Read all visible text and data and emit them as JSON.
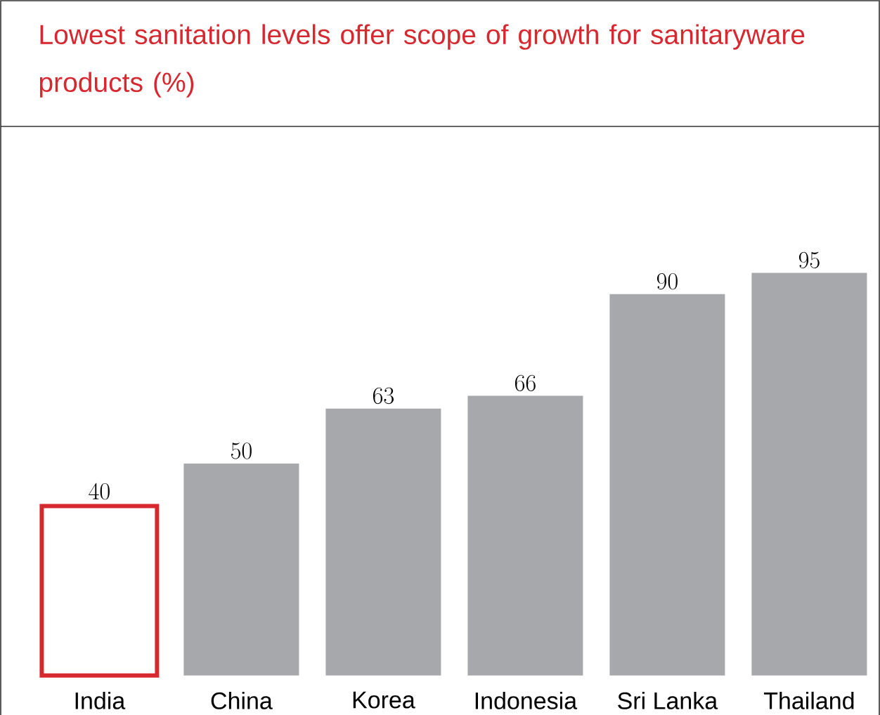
{
  "chart_data": {
    "type": "bar",
    "title": "Lowest sanitation levels offer scope of growth for sanitaryware products (%)",
    "categories": [
      "India",
      "China",
      "Korea",
      "Indonesia",
      "Sri Lanka",
      "Thailand"
    ],
    "values": [
      40,
      50,
      63,
      66,
      90,
      95
    ],
    "colors": [
      "#d7282f",
      "#a7a8ab",
      "#a7a8ab",
      "#a7a8ab",
      "#a7a8ab",
      "#a7a8ab"
    ],
    "data_labels": true
  }
}
